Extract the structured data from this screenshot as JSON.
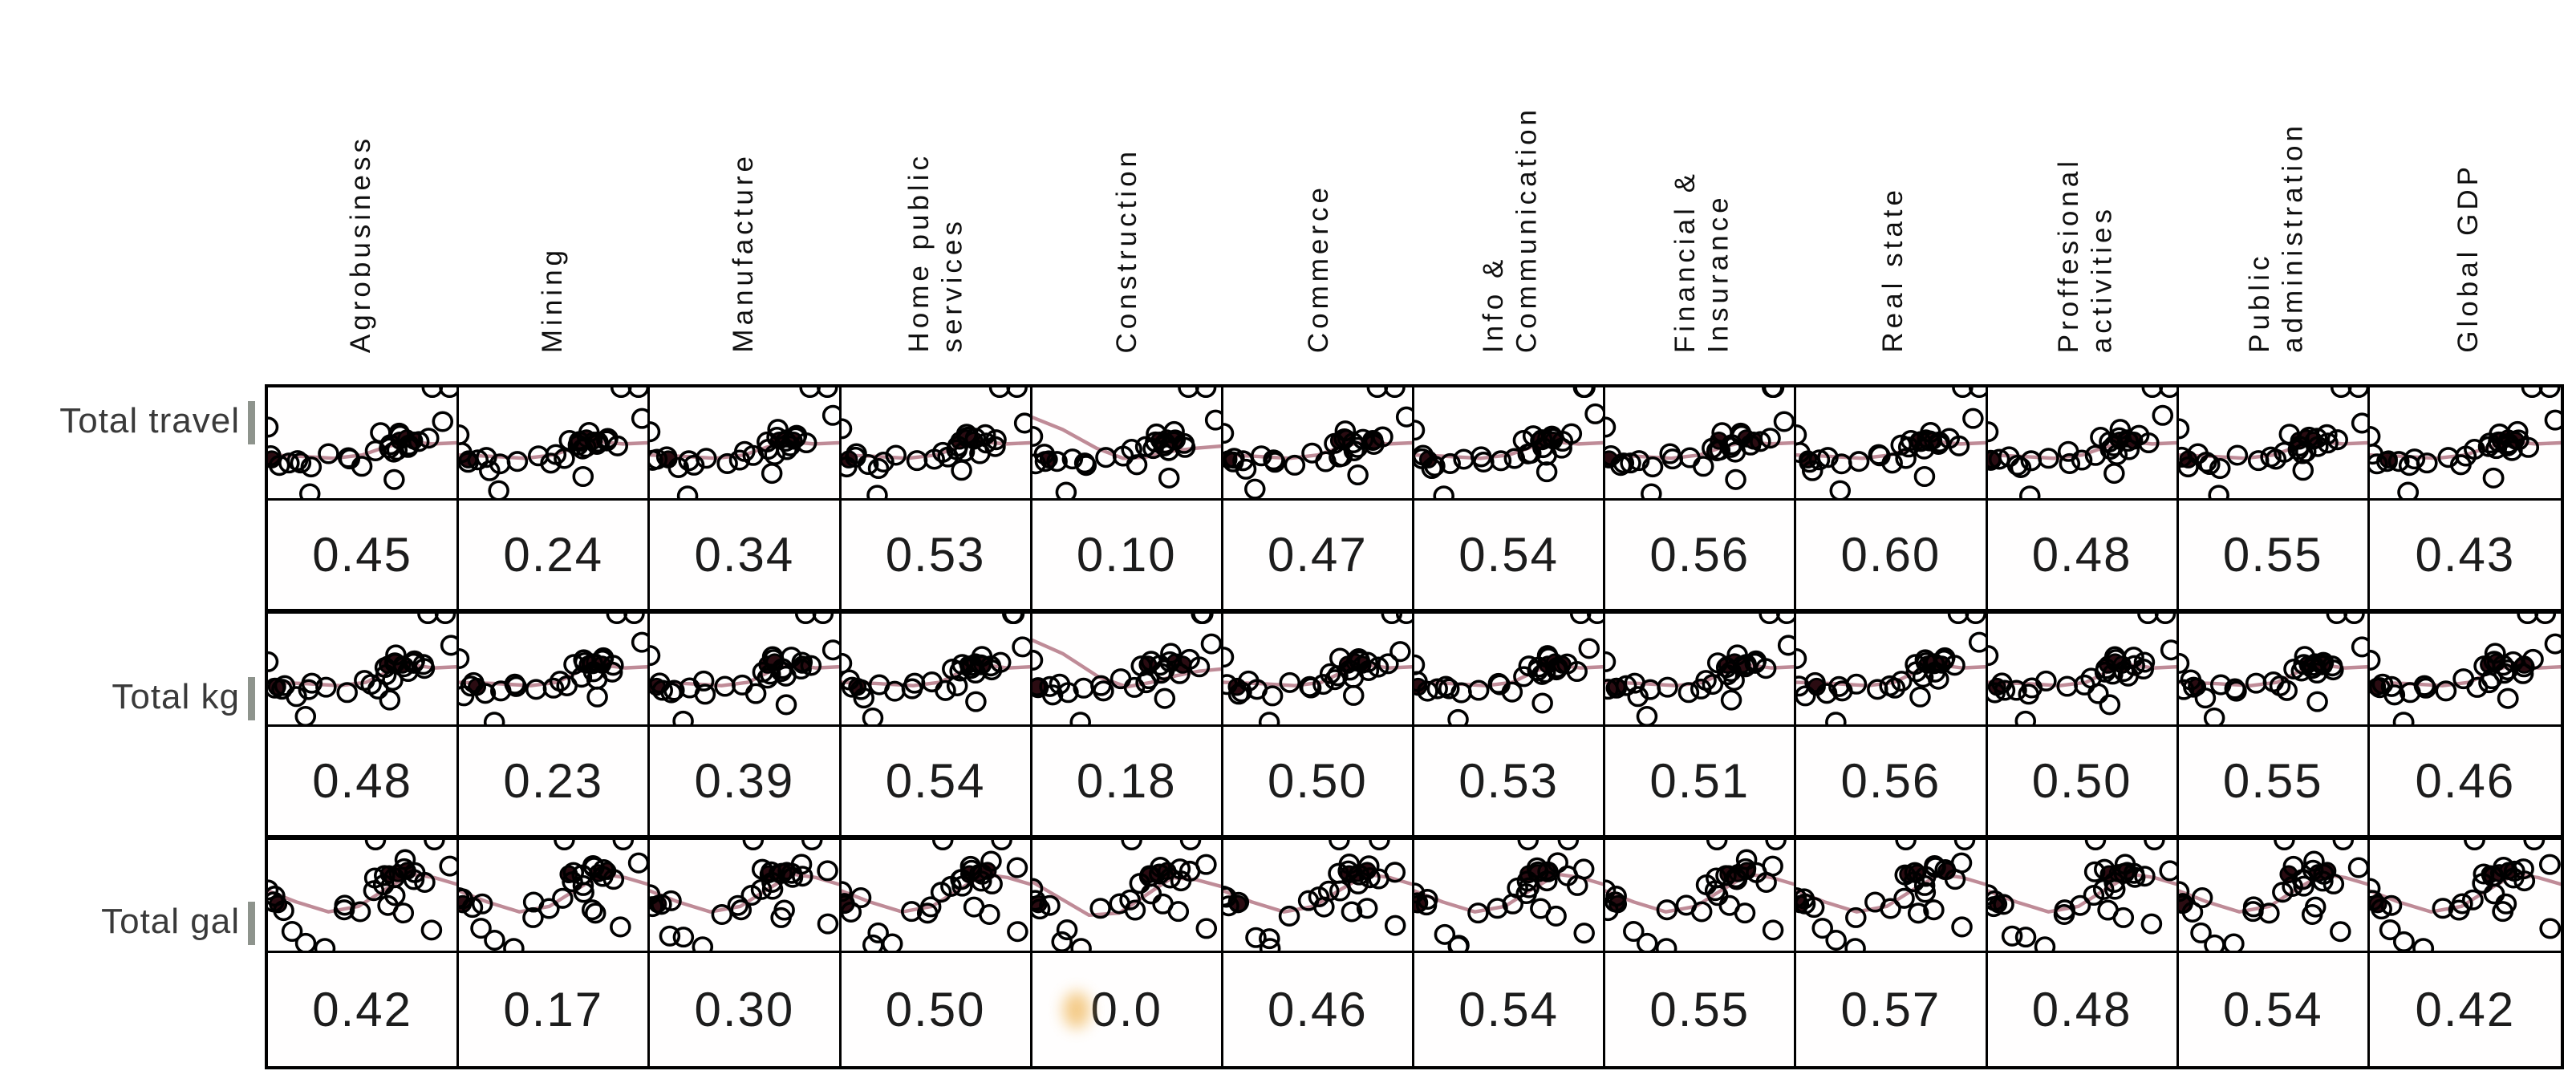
{
  "matrix": {
    "columns": [
      "Agrobusiness",
      "Mining",
      "Manufacture",
      "Home public\nservices",
      "Construction",
      "Commerce",
      "Info &\nCommunication",
      "Financial &\nInsurance",
      "Real state",
      "Proffesional\nactivities",
      "Public\nadministration",
      "Global GDP"
    ],
    "rows": [
      {
        "label": "Total travel",
        "values": [
          "0.45",
          "0.24",
          "0.34",
          "0.53",
          "0.10",
          "0.47",
          "0.54",
          "0.56",
          "0.60",
          "0.48",
          "0.55",
          "0.43"
        ]
      },
      {
        "label": "Total kg",
        "values": [
          "0.48",
          "0.23",
          "0.39",
          "0.54",
          "0.18",
          "0.50",
          "0.53",
          "0.51",
          "0.56",
          "0.50",
          "0.55",
          "0.46"
        ]
      },
      {
        "label": "Total gal",
        "values": [
          "0.42",
          "0.17",
          "0.30",
          "0.50",
          "0.0",
          "0.46",
          "0.54",
          "0.55",
          "0.57",
          "0.48",
          "0.54",
          "0.42"
        ]
      }
    ],
    "smudge_cell": {
      "row": 2,
      "col": 4
    }
  },
  "chart_data": {
    "type": "scatter",
    "subtype": "correlation-scatterplot-matrix",
    "columns": [
      "Agrobusiness",
      "Mining",
      "Manufacture",
      "Home public services",
      "Construction",
      "Commerce",
      "Info & Communication",
      "Financial & Insurance",
      "Real state",
      "Proffesional activities",
      "Public administration",
      "Global GDP"
    ],
    "rows": [
      "Total travel",
      "Total kg",
      "Total gal"
    ],
    "series": [
      {
        "name": "Total travel",
        "values": [
          0.45,
          0.24,
          0.34,
          0.53,
          0.1,
          0.47,
          0.54,
          0.56,
          0.6,
          0.48,
          0.55,
          0.43
        ]
      },
      {
        "name": "Total kg",
        "values": [
          0.48,
          0.23,
          0.39,
          0.54,
          0.18,
          0.5,
          0.53,
          0.51,
          0.56,
          0.5,
          0.55,
          0.46
        ]
      },
      {
        "name": "Total gal",
        "values": [
          0.42,
          0.17,
          0.3,
          0.5,
          0.0,
          0.46,
          0.54,
          0.55,
          0.57,
          0.48,
          0.54,
          0.42
        ]
      }
    ],
    "legend_position": "none",
    "grid": true,
    "marker": "open-circle",
    "trend_line_color": "#bf8b97",
    "scatter_render": {
      "travel": {
        "trend": [
          [
            0,
            61
          ],
          [
            15,
            62
          ],
          [
            35,
            64
          ],
          [
            50,
            61
          ],
          [
            62,
            54
          ],
          [
            74,
            49
          ],
          [
            87,
            51
          ],
          [
            100,
            50
          ]
        ],
        "trend_construction": [
          [
            0,
            27
          ],
          [
            16,
            38
          ],
          [
            34,
            55
          ],
          [
            48,
            64
          ],
          [
            60,
            63
          ],
          [
            72,
            58
          ],
          [
            86,
            55
          ],
          [
            100,
            53
          ]
        ],
        "points": [
          [
            0,
            40
          ],
          [
            3,
            63
          ],
          [
            6,
            69
          ],
          [
            9,
            64
          ],
          [
            13,
            71
          ],
          [
            19,
            66
          ],
          [
            24,
            69
          ],
          [
            31,
            64
          ],
          [
            40,
            66
          ],
          [
            47,
            62
          ],
          [
            52,
            67
          ],
          [
            57,
            60
          ],
          [
            20,
            96
          ],
          [
            60,
            52
          ],
          [
            63,
            45
          ],
          [
            66,
            53
          ],
          [
            69,
            42
          ],
          [
            71,
            50
          ],
          [
            74,
            44
          ],
          [
            77,
            52
          ],
          [
            80,
            46
          ],
          [
            83,
            50
          ],
          [
            64,
            58
          ],
          [
            70,
            57
          ],
          [
            68,
            79
          ],
          [
            86,
            0
          ],
          [
            93,
            0
          ],
          [
            97,
            28
          ]
        ],
        "blobs": [
          [
            5,
            65
          ],
          [
            65,
            48
          ],
          [
            70,
            46
          ],
          [
            75,
            48
          ]
        ]
      },
      "kg": {
        "trend": [
          [
            0,
            62
          ],
          [
            18,
            63
          ],
          [
            38,
            65
          ],
          [
            52,
            62
          ],
          [
            64,
            52
          ],
          [
            75,
            46
          ],
          [
            88,
            49
          ],
          [
            100,
            48
          ]
        ],
        "trend_construction": [
          [
            0,
            24
          ],
          [
            16,
            36
          ],
          [
            35,
            57
          ],
          [
            50,
            66
          ],
          [
            63,
            62
          ],
          [
            76,
            56
          ],
          [
            88,
            52
          ],
          [
            100,
            50
          ]
        ],
        "points": [
          [
            0,
            42
          ],
          [
            3,
            64
          ],
          [
            7,
            70
          ],
          [
            10,
            65
          ],
          [
            14,
            72
          ],
          [
            20,
            67
          ],
          [
            26,
            70
          ],
          [
            33,
            65
          ],
          [
            42,
            67
          ],
          [
            49,
            63
          ],
          [
            54,
            68
          ],
          [
            58,
            61
          ],
          [
            21,
            97
          ],
          [
            61,
            50
          ],
          [
            64,
            43
          ],
          [
            67,
            51
          ],
          [
            70,
            40
          ],
          [
            72,
            48
          ],
          [
            75,
            42
          ],
          [
            78,
            50
          ],
          [
            81,
            44
          ],
          [
            84,
            48
          ],
          [
            65,
            56
          ],
          [
            71,
            55
          ],
          [
            69,
            78
          ],
          [
            87,
            0
          ],
          [
            94,
            0
          ],
          [
            97,
            30
          ]
        ],
        "blobs": [
          [
            6,
            66
          ],
          [
            66,
            46
          ],
          [
            71,
            44
          ],
          [
            76,
            46
          ]
        ]
      },
      "gal": {
        "trend": [
          [
            0,
            46
          ],
          [
            15,
            56
          ],
          [
            32,
            65
          ],
          [
            48,
            60
          ],
          [
            62,
            45
          ],
          [
            76,
            31
          ],
          [
            88,
            34
          ],
          [
            100,
            40
          ]
        ],
        "trend_construction": [
          [
            0,
            38
          ],
          [
            14,
            52
          ],
          [
            30,
            68
          ],
          [
            46,
            66
          ],
          [
            60,
            50
          ],
          [
            74,
            34
          ],
          [
            87,
            36
          ],
          [
            100,
            42
          ]
        ],
        "points": [
          [
            0,
            48
          ],
          [
            2,
            56
          ],
          [
            5,
            61
          ],
          [
            8,
            55
          ],
          [
            15,
            84
          ],
          [
            20,
            92
          ],
          [
            28,
            98
          ],
          [
            36,
            66
          ],
          [
            44,
            59
          ],
          [
            50,
            62
          ],
          [
            55,
            50
          ],
          [
            58,
            42
          ],
          [
            61,
            33
          ],
          [
            64,
            28
          ],
          [
            67,
            37
          ],
          [
            70,
            26
          ],
          [
            73,
            33
          ],
          [
            76,
            22
          ],
          [
            79,
            31
          ],
          [
            82,
            37
          ],
          [
            64,
            46
          ],
          [
            68,
            62
          ],
          [
            74,
            66
          ],
          [
            57,
            0
          ],
          [
            86,
            0
          ],
          [
            92,
            25
          ],
          [
            90,
            80
          ]
        ],
        "blobs": [
          [
            3,
            58
          ],
          [
            63,
            31
          ],
          [
            69,
            30
          ],
          [
            75,
            28
          ]
        ]
      }
    },
    "colors": {
      "border": "#000000",
      "trend": "#bf8b97",
      "point_stroke": "#000000",
      "blob_fill": "#2b0c12",
      "value_text": "#1c1c1c",
      "row_label_text": "#3a3a3a",
      "smudge": "#f0b95f"
    }
  }
}
